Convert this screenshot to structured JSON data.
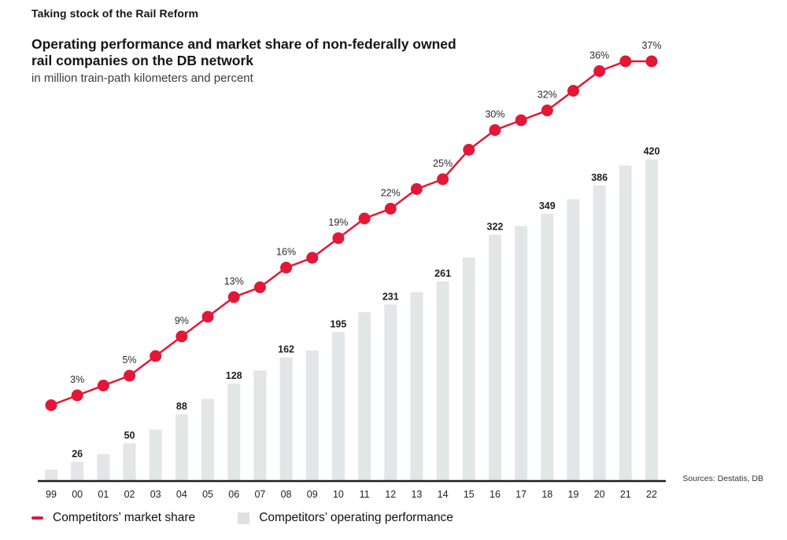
{
  "page": {
    "eyebrow": "Taking stock of the Rail Reform",
    "title_line1": "Operating performance and market share of non-federally owned",
    "title_line2": "rail companies on the DB network",
    "subtitle": "in million train-path kilometers and percent",
    "source": "Sources: Destatis, DB"
  },
  "legend": {
    "items": [
      {
        "label": "Competitors’ market share",
        "swatch": "line-dash",
        "color": "#e21836"
      },
      {
        "label": "Competitors’ operating performance",
        "swatch": "square",
        "color": "#dce1e0"
      }
    ]
  },
  "colors": {
    "accent_red": "#e21836",
    "bar_fill": "#e2e6e6",
    "axis": "#1c1c1c",
    "label_text": "#1d1d1d"
  },
  "chart_data": {
    "type": "bar",
    "subtype": "combo-bar-line",
    "title": "Operating performance and market share of non-federally owned rail companies on the DB network",
    "subtitle": "in million train-path kilometers and percent",
    "xlabel": "",
    "ylabel": "",
    "grid": false,
    "legend_position": "bottom",
    "categories": [
      "99",
      "00",
      "01",
      "02",
      "03",
      "04",
      "05",
      "06",
      "07",
      "08",
      "09",
      "10",
      "11",
      "12",
      "13",
      "14",
      "15",
      "16",
      "17",
      "18",
      "19",
      "20",
      "21",
      "22"
    ],
    "series": [
      {
        "name": "Competitors’ operating performance",
        "type": "bar",
        "unit": "million train-path kilometers",
        "color": "#e2e6e6",
        "values": [
          16,
          26,
          36,
          50,
          68,
          88,
          108,
          128,
          145,
          162,
          171,
          195,
          221,
          231,
          247,
          261,
          292,
          322,
          333,
          349,
          368,
          386,
          412,
          420
        ],
        "point_labels": [
          null,
          "26",
          null,
          "50",
          null,
          "88",
          null,
          "128",
          null,
          "162",
          null,
          "195",
          null,
          "231",
          null,
          "261",
          null,
          "322",
          null,
          "349",
          null,
          "386",
          null,
          "420"
        ]
      },
      {
        "name": "Competitors’ market share",
        "type": "line",
        "unit": "percent",
        "color": "#e21836",
        "values": [
          2,
          3,
          4,
          5,
          7,
          9,
          11,
          13,
          14,
          16,
          17,
          19,
          21,
          22,
          24,
          25,
          28,
          30,
          31,
          32,
          34,
          36,
          37,
          37
        ],
        "point_labels": [
          null,
          "3%",
          null,
          "5%",
          null,
          "9%",
          null,
          "13%",
          null,
          "16%",
          null,
          "19%",
          null,
          "22%",
          null,
          "25%",
          null,
          "30%",
          null,
          "32%",
          null,
          "36%",
          null,
          "37%"
        ]
      }
    ]
  }
}
